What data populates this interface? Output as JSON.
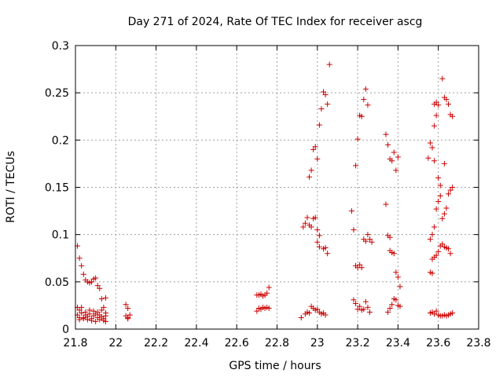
{
  "chart_data": {
    "type": "scatter",
    "title": "Day 271 of 2024, Rate Of TEC Index for receiver ascg",
    "xlabel": "GPS time / hours",
    "ylabel": "ROTI / TECUs",
    "xlim": [
      21.8,
      23.8
    ],
    "ylim": [
      0,
      0.3
    ],
    "grid": true,
    "marker": "+",
    "color": "#cc0000",
    "x_ticks": [
      21.8,
      22,
      22.2,
      22.4,
      22.6,
      22.8,
      23,
      23.2,
      23.4,
      23.6,
      23.8
    ],
    "x_tick_labels": [
      "21.8",
      "22",
      "22.2",
      "22.4",
      "22.6",
      "22.8",
      "23",
      "23.2",
      "23.4",
      "23.6",
      "23.8"
    ],
    "y_ticks": [
      0,
      0.05,
      0.1,
      0.15,
      0.2,
      0.25,
      0.3
    ],
    "y_tick_labels": [
      "0",
      "0.05",
      "0.1",
      "0.15",
      "0.2",
      "0.25",
      "0.3"
    ],
    "series": [
      {
        "name": "ROTI",
        "points": [
          [
            21.81,
            0.088
          ],
          [
            21.82,
            0.075
          ],
          [
            21.83,
            0.067
          ],
          [
            21.84,
            0.058
          ],
          [
            21.85,
            0.052
          ],
          [
            21.86,
            0.05
          ],
          [
            21.87,
            0.049
          ],
          [
            21.88,
            0.05
          ],
          [
            21.89,
            0.053
          ],
          [
            21.9,
            0.054
          ],
          [
            21.91,
            0.046
          ],
          [
            21.92,
            0.043
          ],
          [
            21.93,
            0.032
          ],
          [
            21.95,
            0.033
          ],
          [
            21.81,
            0.023
          ],
          [
            21.82,
            0.02
          ],
          [
            21.83,
            0.023
          ],
          [
            21.85,
            0.018
          ],
          [
            21.87,
            0.02
          ],
          [
            21.89,
            0.019
          ],
          [
            21.91,
            0.018
          ],
          [
            21.93,
            0.02
          ],
          [
            21.94,
            0.023
          ],
          [
            21.95,
            0.017
          ],
          [
            21.81,
            0.015
          ],
          [
            21.82,
            0.012
          ],
          [
            21.83,
            0.017
          ],
          [
            21.84,
            0.011
          ],
          [
            21.85,
            0.015
          ],
          [
            21.86,
            0.013
          ],
          [
            21.87,
            0.016
          ],
          [
            21.88,
            0.011
          ],
          [
            21.89,
            0.014
          ],
          [
            21.9,
            0.016
          ],
          [
            21.91,
            0.012
          ],
          [
            21.92,
            0.015
          ],
          [
            21.93,
            0.013
          ],
          [
            21.94,
            0.011
          ],
          [
            21.95,
            0.014
          ],
          [
            21.82,
            0.01
          ],
          [
            21.84,
            0.012
          ],
          [
            21.86,
            0.01
          ],
          [
            21.88,
            0.009
          ],
          [
            21.9,
            0.008
          ],
          [
            21.92,
            0.01
          ],
          [
            21.94,
            0.009
          ],
          [
            21.95,
            0.008
          ],
          [
            22.05,
            0.026
          ],
          [
            22.06,
            0.022
          ],
          [
            22.05,
            0.014
          ],
          [
            22.06,
            0.012
          ],
          [
            22.07,
            0.015
          ],
          [
            22.06,
            0.011
          ],
          [
            22.7,
            0.036
          ],
          [
            22.71,
            0.036
          ],
          [
            22.72,
            0.037
          ],
          [
            22.73,
            0.035
          ],
          [
            22.74,
            0.036
          ],
          [
            22.75,
            0.038
          ],
          [
            22.76,
            0.044
          ],
          [
            22.7,
            0.019
          ],
          [
            22.71,
            0.022
          ],
          [
            22.72,
            0.021
          ],
          [
            22.73,
            0.023
          ],
          [
            22.74,
            0.022
          ],
          [
            22.75,
            0.023
          ],
          [
            22.76,
            0.022
          ],
          [
            22.93,
            0.108
          ],
          [
            22.94,
            0.112
          ],
          [
            22.95,
            0.118
          ],
          [
            22.96,
            0.11
          ],
          [
            22.97,
            0.108
          ],
          [
            22.98,
            0.117
          ],
          [
            22.99,
            0.118
          ],
          [
            23.0,
            0.105
          ],
          [
            23.01,
            0.099
          ],
          [
            22.96,
            0.161
          ],
          [
            22.97,
            0.168
          ],
          [
            22.98,
            0.19
          ],
          [
            22.99,
            0.193
          ],
          [
            23.0,
            0.18
          ],
          [
            23.01,
            0.216
          ],
          [
            23.02,
            0.233
          ],
          [
            23.03,
            0.251
          ],
          [
            23.04,
            0.248
          ],
          [
            23.05,
            0.238
          ],
          [
            23.06,
            0.28
          ],
          [
            23.0,
            0.092
          ],
          [
            23.01,
            0.087
          ],
          [
            23.03,
            0.085
          ],
          [
            23.04,
            0.086
          ],
          [
            23.05,
            0.08
          ],
          [
            22.92,
            0.012
          ],
          [
            22.94,
            0.016
          ],
          [
            22.95,
            0.018
          ],
          [
            22.96,
            0.017
          ],
          [
            22.97,
            0.024
          ],
          [
            22.98,
            0.022
          ],
          [
            22.99,
            0.02
          ],
          [
            23.0,
            0.021
          ],
          [
            23.01,
            0.018
          ],
          [
            23.02,
            0.016
          ],
          [
            23.03,
            0.017
          ],
          [
            23.04,
            0.015
          ],
          [
            23.17,
            0.125
          ],
          [
            23.18,
            0.105
          ],
          [
            23.19,
            0.173
          ],
          [
            23.2,
            0.201
          ],
          [
            23.21,
            0.226
          ],
          [
            23.22,
            0.225
          ],
          [
            23.23,
            0.243
          ],
          [
            23.24,
            0.254
          ],
          [
            23.25,
            0.237
          ],
          [
            23.19,
            0.067
          ],
          [
            23.2,
            0.065
          ],
          [
            23.21,
            0.068
          ],
          [
            23.22,
            0.065
          ],
          [
            23.23,
            0.095
          ],
          [
            23.24,
            0.093
          ],
          [
            23.25,
            0.1
          ],
          [
            23.26,
            0.095
          ],
          [
            23.27,
            0.092
          ],
          [
            23.18,
            0.031
          ],
          [
            23.19,
            0.027
          ],
          [
            23.2,
            0.021
          ],
          [
            23.21,
            0.024
          ],
          [
            23.22,
            0.02
          ],
          [
            23.23,
            0.021
          ],
          [
            23.24,
            0.029
          ],
          [
            23.25,
            0.023
          ],
          [
            23.26,
            0.018
          ],
          [
            23.34,
            0.206
          ],
          [
            23.35,
            0.195
          ],
          [
            23.36,
            0.18
          ],
          [
            23.37,
            0.178
          ],
          [
            23.38,
            0.187
          ],
          [
            23.39,
            0.168
          ],
          [
            23.4,
            0.182
          ],
          [
            23.34,
            0.132
          ],
          [
            23.35,
            0.099
          ],
          [
            23.36,
            0.097
          ],
          [
            23.36,
            0.083
          ],
          [
            23.37,
            0.081
          ],
          [
            23.38,
            0.08
          ],
          [
            23.39,
            0.06
          ],
          [
            23.4,
            0.055
          ],
          [
            23.41,
            0.045
          ],
          [
            23.35,
            0.018
          ],
          [
            23.36,
            0.022
          ],
          [
            23.37,
            0.026
          ],
          [
            23.38,
            0.032
          ],
          [
            23.39,
            0.031
          ],
          [
            23.4,
            0.025
          ],
          [
            23.41,
            0.024
          ],
          [
            23.55,
            0.181
          ],
          [
            23.56,
            0.197
          ],
          [
            23.57,
            0.192
          ],
          [
            23.58,
            0.178
          ],
          [
            23.58,
            0.238
          ],
          [
            23.59,
            0.24
          ],
          [
            23.6,
            0.237
          ],
          [
            23.58,
            0.215
          ],
          [
            23.59,
            0.226
          ],
          [
            23.6,
            0.16
          ],
          [
            23.61,
            0.152
          ],
          [
            23.62,
            0.265
          ],
          [
            23.63,
            0.245
          ],
          [
            23.64,
            0.243
          ],
          [
            23.65,
            0.238
          ],
          [
            23.66,
            0.227
          ],
          [
            23.67,
            0.225
          ],
          [
            23.63,
            0.175
          ],
          [
            23.56,
            0.095
          ],
          [
            23.57,
            0.1
          ],
          [
            23.58,
            0.108
          ],
          [
            23.59,
            0.127
          ],
          [
            23.6,
            0.135
          ],
          [
            23.61,
            0.141
          ],
          [
            23.62,
            0.117
          ],
          [
            23.63,
            0.122
          ],
          [
            23.64,
            0.128
          ],
          [
            23.65,
            0.143
          ],
          [
            23.66,
            0.147
          ],
          [
            23.67,
            0.15
          ],
          [
            23.57,
            0.074
          ],
          [
            23.58,
            0.076
          ],
          [
            23.59,
            0.078
          ],
          [
            23.6,
            0.082
          ],
          [
            23.61,
            0.088
          ],
          [
            23.62,
            0.09
          ],
          [
            23.63,
            0.087
          ],
          [
            23.64,
            0.086
          ],
          [
            23.65,
            0.085
          ],
          [
            23.66,
            0.08
          ],
          [
            23.56,
            0.06
          ],
          [
            23.57,
            0.059
          ],
          [
            23.56,
            0.017
          ],
          [
            23.57,
            0.018
          ],
          [
            23.58,
            0.016
          ],
          [
            23.59,
            0.019
          ],
          [
            23.6,
            0.015
          ],
          [
            23.61,
            0.014
          ],
          [
            23.62,
            0.014
          ],
          [
            23.63,
            0.015
          ],
          [
            23.64,
            0.014
          ],
          [
            23.65,
            0.015
          ],
          [
            23.66,
            0.016
          ],
          [
            23.67,
            0.017
          ]
        ]
      }
    ]
  }
}
